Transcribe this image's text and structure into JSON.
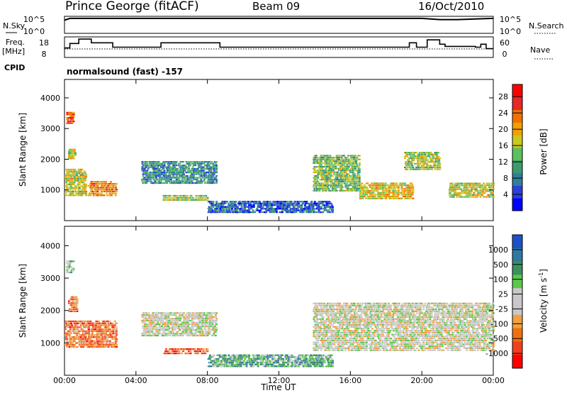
{
  "header": {
    "station": "Prince George (fitACF)",
    "beam": "Beam 09",
    "date": "16/Oct/2010"
  },
  "chart_data": [
    {
      "id": "nsky-nsearch",
      "type": "line",
      "left_label": "N.Sky",
      "right_label": "N.Search",
      "left_ticks": [
        "10^5",
        "10^0"
      ],
      "right_ticks": [
        "10^5",
        "10^0"
      ],
      "x_hours": [
        0,
        0.3,
        1,
        2,
        3,
        4,
        5,
        6,
        7,
        8,
        9,
        10,
        11,
        12,
        13,
        14,
        15,
        16,
        17,
        18,
        19,
        20,
        21,
        22,
        23,
        24
      ],
      "values_log10": [
        4.2,
        4.8,
        4.8,
        4.8,
        4.8,
        4.8,
        4.8,
        4.8,
        4.8,
        4.8,
        4.8,
        4.8,
        4.8,
        4.8,
        4.8,
        4.8,
        4.8,
        4.8,
        4.8,
        4.8,
        4.8,
        4.8,
        4.4,
        4.4,
        4.6,
        4.8
      ]
    },
    {
      "id": "freq-nave",
      "type": "line",
      "left_label": "Freq.",
      "left_unit": "[MHz]",
      "right_label": "Nave",
      "left_ticks": [
        18,
        8
      ],
      "right_ticks": [
        60,
        0
      ],
      "cpid_label": "CPID",
      "cpid_text": "normalsound (fast) -157",
      "freq_steps": [
        [
          0,
          12.5
        ],
        [
          0.3,
          15.5
        ],
        [
          0.8,
          18.5
        ],
        [
          1.5,
          16
        ],
        [
          2.7,
          13
        ],
        [
          5.4,
          16
        ],
        [
          8.7,
          13
        ],
        [
          19.3,
          16
        ],
        [
          19.7,
          13
        ],
        [
          20.3,
          18
        ],
        [
          21.0,
          15
        ],
        [
          21.3,
          13.5
        ],
        [
          23.0,
          13
        ],
        [
          23.3,
          15
        ],
        [
          23.6,
          12
        ]
      ],
      "nave_level": 30
    },
    {
      "id": "power",
      "type": "heatmap",
      "ylabel": "Slant Range [km]",
      "ylim": [
        0,
        4600
      ],
      "yticks": [
        1000,
        2000,
        3000,
        4000
      ],
      "colorbar_label": "Power [dB]",
      "colorbar_ticks": [
        4,
        8,
        12,
        16,
        20,
        24,
        28
      ],
      "colorbar_range": [
        0,
        31
      ],
      "colors": [
        "#0000ff",
        "#2c3fd9",
        "#2e7f9e",
        "#3c9b6e",
        "#5cc05c",
        "#c8c820",
        "#f0a000",
        "#f07000",
        "#e62828",
        "#ff0000"
      ],
      "echoes": [
        {
          "x": [
            0,
            1.2
          ],
          "r": [
            850,
            1750
          ],
          "level": 0.55
        },
        {
          "x": [
            1.3,
            2.9
          ],
          "r": [
            850,
            1350
          ],
          "level": 0.7
        },
        {
          "x": [
            0.1,
            0.5
          ],
          "r": [
            3200,
            3600
          ],
          "level": 0.8
        },
        {
          "x": [
            0.2,
            0.6
          ],
          "r": [
            2050,
            2400
          ],
          "level": 0.55
        },
        {
          "x": [
            4.3,
            8.5
          ],
          "r": [
            1250,
            2000
          ],
          "level": 0.3
        },
        {
          "x": [
            5.5,
            8.0
          ],
          "r": [
            700,
            900
          ],
          "level": 0.5
        },
        {
          "x": [
            8,
            15
          ],
          "r": [
            300,
            700
          ],
          "level": 0.2
        },
        {
          "x": [
            13.9,
            16.5
          ],
          "r": [
            1000,
            2200
          ],
          "level": 0.45
        },
        {
          "x": [
            16.5,
            19.5
          ],
          "r": [
            750,
            1300
          ],
          "level": 0.6
        },
        {
          "x": [
            19,
            21
          ],
          "r": [
            1700,
            2300
          ],
          "level": 0.5
        },
        {
          "x": [
            21.5,
            24
          ],
          "r": [
            800,
            1300
          ],
          "level": 0.55
        }
      ]
    },
    {
      "id": "velocity",
      "type": "heatmap",
      "xlabel": "Time UT",
      "ylabel": "Slant Range [km]",
      "ylim": [
        0,
        4600
      ],
      "yticks": [
        1000,
        2000,
        3000,
        4000
      ],
      "xticks": [
        "00:00",
        "04:00",
        "08:00",
        "12:00",
        "16:00",
        "20:00",
        "00:00"
      ],
      "xlim_hours": [
        0,
        24
      ],
      "colorbar_label": "Velocity [m s",
      "colorbar_label_sup": "-1",
      "colorbar_label_end": "]",
      "colorbar_ticks": [
        "1000",
        "500",
        "100",
        "25",
        "-25",
        "-100",
        "-500",
        "-1000"
      ],
      "colors": [
        "#1e50c8",
        "#2f78a0",
        "#3a9060",
        "#5ac84a",
        "#c8c8c8",
        "#c8c8c8",
        "#f0a040",
        "#f07010",
        "#f04020",
        "#ff0000"
      ],
      "echoes": [
        {
          "x": [
            0,
            2.9
          ],
          "r": [
            900,
            1750
          ],
          "level": 0.75
        },
        {
          "x": [
            0.1,
            0.5
          ],
          "r": [
            3200,
            3600
          ],
          "level": 0.4
        },
        {
          "x": [
            0.2,
            0.7
          ],
          "r": [
            2000,
            2500
          ],
          "level": 0.75
        },
        {
          "x": [
            4.3,
            8.5
          ],
          "r": [
            1250,
            2000
          ],
          "level": 0.5
        },
        {
          "x": [
            5.5,
            8.0
          ],
          "r": [
            700,
            900
          ],
          "level": 0.8
        },
        {
          "x": [
            8,
            15
          ],
          "r": [
            300,
            700
          ],
          "level": 0.3
        },
        {
          "x": [
            13.9,
            24
          ],
          "r": [
            800,
            2300
          ],
          "level": 0.5
        }
      ]
    }
  ]
}
